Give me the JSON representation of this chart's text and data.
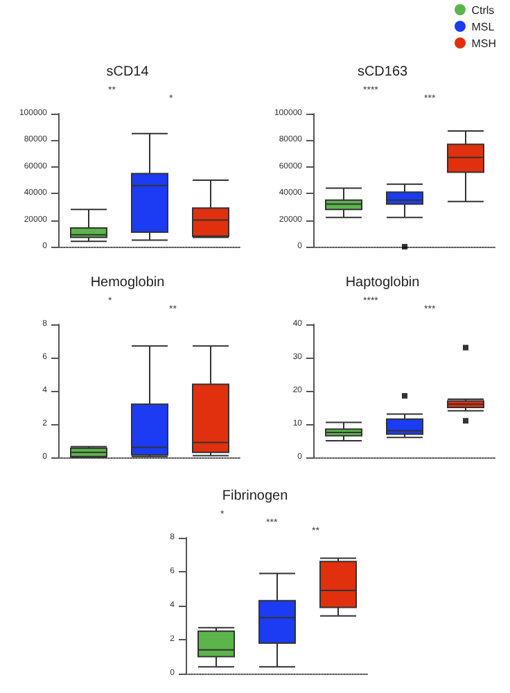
{
  "chart_data": [
    {
      "type": "box",
      "title": "sCD14",
      "categories": [
        null,
        null,
        null
      ],
      "ylim": [
        0,
        100000
      ],
      "yticks": [
        0,
        20000,
        40000,
        60000,
        80000,
        100000
      ],
      "tick_labels": "y",
      "legend": "top right",
      "annotations": [
        "**",
        "*"
      ],
      "series": [
        {
          "name": "Ctrls",
          "color": "#5cb54a",
          "boxes": [
            {
              "low": 4000,
              "q1": 7000,
              "median": 9000,
              "q3": 14000,
              "high": 28000
            },
            null,
            null
          ]
        },
        {
          "name": "MSL",
          "color": "#1b3cf2",
          "boxes": [
            null,
            {
              "low": 5000,
              "q1": 11000,
              "median": 46000,
              "q3": 55000,
              "high": 85000
            },
            null
          ]
        },
        {
          "name": "MSH",
          "color": "#e1300e",
          "boxes": [
            null,
            null,
            {
              "low": 7000,
              "q1": 8000,
              "median": 20000,
              "q3": 29000,
              "high": 50000
            }
          ]
        }
      ]
    },
    {
      "type": "box",
      "title": "sCD163",
      "categories": [
        null,
        null,
        null
      ],
      "ylim": [
        0,
        100000
      ],
      "yticks": [
        0,
        20000,
        40000,
        60000,
        80000,
        100000
      ],
      "tick_labels": "y",
      "annotations": [
        "****",
        "***"
      ],
      "series": [
        {
          "color": "#5cb54a",
          "boxes": [
            {
              "low": 22000,
              "q1": 28000,
              "median": 32000,
              "q3": 35000,
              "high": 44000
            },
            null,
            null
          ]
        },
        {
          "color": "#1b3cf2",
          "boxes": [
            null,
            {
              "low": 22000,
              "q1": 32000,
              "median": 35000,
              "q3": 41000,
              "high": 47000,
              "outliers": [
                0
              ]
            },
            null
          ]
        },
        {
          "color": "#e1300e",
          "boxes": [
            null,
            null,
            {
              "low": 34000,
              "q1": 56000,
              "median": 67000,
              "q3": 77000,
              "high": 87000
            }
          ]
        }
      ]
    },
    {
      "type": "box",
      "title": "Hemoglobin",
      "categories": [
        null,
        null,
        null
      ],
      "ylim": [
        0,
        8
      ],
      "yticks": [
        0,
        2,
        4,
        6,
        8
      ],
      "tick_labels": "y",
      "annotations": [
        "*",
        "**"
      ],
      "series": [
        {
          "color": "#5cb54a",
          "boxes": [
            {
              "low": 0,
              "q1": 0.05,
              "median": 0.3,
              "q3": 0.55,
              "high": 0.65
            },
            null,
            null
          ]
        },
        {
          "color": "#1b3cf2",
          "boxes": [
            null,
            {
              "low": 0.05,
              "q1": 0.15,
              "median": 0.6,
              "q3": 3.2,
              "high": 6.7
            },
            null
          ]
        },
        {
          "color": "#e1300e",
          "boxes": [
            null,
            null,
            {
              "low": 0.1,
              "q1": 0.3,
              "median": 0.9,
              "q3": 4.4,
              "high": 6.7
            }
          ]
        }
      ]
    },
    {
      "type": "box",
      "title": "Haptoglobin",
      "categories": [
        null,
        null,
        null
      ],
      "ylim": [
        0,
        40
      ],
      "yticks": [
        0,
        10,
        20,
        30,
        40
      ],
      "tick_labels": "y",
      "annotations": [
        "****",
        "***"
      ],
      "series": [
        {
          "color": "#5cb54a",
          "boxes": [
            {
              "low": 5,
              "q1": 6.5,
              "median": 7.5,
              "q3": 8.5,
              "high": 10.5
            },
            null,
            null
          ]
        },
        {
          "color": "#1b3cf2",
          "boxes": [
            null,
            {
              "low": 6,
              "q1": 7,
              "median": 8,
              "q3": 11.5,
              "high": 13,
              "outliers": [
                18.5
              ]
            },
            null
          ]
        },
        {
          "color": "#e1300e",
          "boxes": [
            null,
            null,
            {
              "low": 14,
              "q1": 15,
              "median": 16,
              "q3": 17,
              "high": 17.5,
              "outliers": [
                33,
                11
              ]
            }
          ]
        }
      ]
    },
    {
      "type": "box",
      "title": "Fibrinogen",
      "categories": [
        null,
        null,
        null
      ],
      "ylim": [
        0,
        8
      ],
      "yticks": [
        0,
        2,
        4,
        6,
        8
      ],
      "tick_labels": "y",
      "annotations": [
        "*",
        "***",
        "**"
      ],
      "series": [
        {
          "color": "#5cb54a",
          "boxes": [
            {
              "low": 0.4,
              "q1": 1,
              "median": 1.4,
              "q3": 2.5,
              "high": 2.7
            },
            null,
            null
          ]
        },
        {
          "color": "#1b3cf2",
          "boxes": [
            null,
            {
              "low": 0.4,
              "q1": 1.8,
              "median": 3.3,
              "q3": 4.3,
              "high": 5.9
            },
            null
          ]
        },
        {
          "color": "#e1300e",
          "boxes": [
            null,
            null,
            {
              "low": 3.4,
              "q1": 3.9,
              "median": 4.9,
              "q3": 6.6,
              "high": 6.8
            }
          ]
        }
      ]
    }
  ]
}
